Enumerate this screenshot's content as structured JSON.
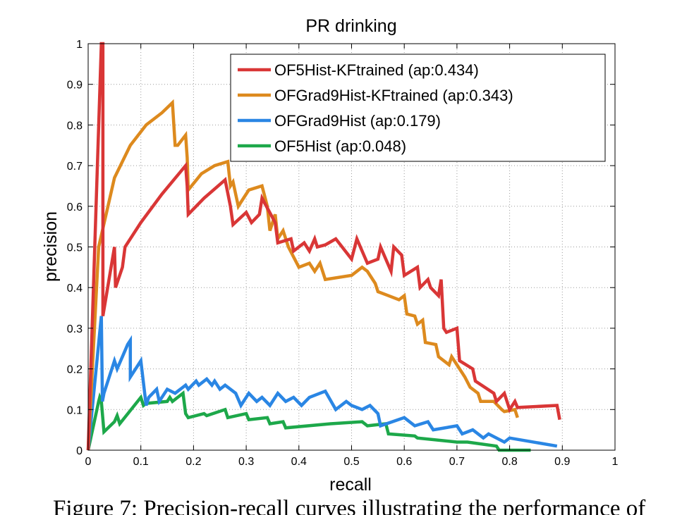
{
  "chart_data": {
    "type": "line",
    "title": "PR drinking",
    "xlabel": "recall",
    "ylabel": "precision",
    "xlim": [
      0,
      1
    ],
    "ylim": [
      0,
      1
    ],
    "grid": true,
    "legend_position": "top-right",
    "xticks": [
      "0",
      "0.1",
      "0.2",
      "0.3",
      "0.4",
      "0.5",
      "0.6",
      "0.7",
      "0.8",
      "0.9",
      "1"
    ],
    "yticks": [
      "0",
      "0.1",
      "0.2",
      "0.3",
      "0.4",
      "0.5",
      "0.6",
      "0.7",
      "0.8",
      "0.9",
      "1"
    ],
    "series": [
      {
        "name": "OF5Hist-KFtrained (ap:0.434)",
        "color": "#d93636",
        "x": [
          0,
          0.025,
          0.028,
          0.028,
          0.05,
          0.052,
          0.065,
          0.07,
          0.1,
          0.14,
          0.185,
          0.188,
          0.19,
          0.22,
          0.26,
          0.27,
          0.275,
          0.3,
          0.31,
          0.325,
          0.33,
          0.355,
          0.36,
          0.385,
          0.39,
          0.41,
          0.42,
          0.43,
          0.435,
          0.45,
          0.47,
          0.5,
          0.51,
          0.53,
          0.55,
          0.555,
          0.575,
          0.58,
          0.595,
          0.6,
          0.625,
          0.63,
          0.645,
          0.65,
          0.665,
          0.67,
          0.675,
          0.68,
          0.7,
          0.705,
          0.73,
          0.735,
          0.77,
          0.775,
          0.79,
          0.8,
          0.81,
          0.815,
          0.89,
          0.895
        ],
        "y": [
          0,
          1.0,
          1.0,
          0.33,
          0.5,
          0.4,
          0.45,
          0.5,
          0.56,
          0.63,
          0.7,
          0.65,
          0.58,
          0.62,
          0.665,
          0.6,
          0.555,
          0.585,
          0.56,
          0.58,
          0.62,
          0.56,
          0.51,
          0.52,
          0.49,
          0.51,
          0.49,
          0.52,
          0.5,
          0.505,
          0.52,
          0.47,
          0.52,
          0.46,
          0.47,
          0.5,
          0.44,
          0.5,
          0.48,
          0.43,
          0.45,
          0.4,
          0.42,
          0.4,
          0.38,
          0.42,
          0.3,
          0.29,
          0.3,
          0.22,
          0.2,
          0.17,
          0.14,
          0.12,
          0.14,
          0.1,
          0.12,
          0.105,
          0.11,
          0.075
        ]
      },
      {
        "name": "OFGrad9Hist-KFtrained (ap:0.343)",
        "color": "#dd8a1e",
        "x": [
          0,
          0.02,
          0.05,
          0.08,
          0.11,
          0.14,
          0.16,
          0.165,
          0.17,
          0.185,
          0.188,
          0.19,
          0.215,
          0.24,
          0.265,
          0.27,
          0.275,
          0.285,
          0.29,
          0.305,
          0.33,
          0.34,
          0.345,
          0.355,
          0.36,
          0.37,
          0.38,
          0.4,
          0.42,
          0.43,
          0.44,
          0.45,
          0.5,
          0.52,
          0.53,
          0.545,
          0.55,
          0.57,
          0.59,
          0.6,
          0.605,
          0.62,
          0.625,
          0.635,
          0.64,
          0.66,
          0.665,
          0.685,
          0.69,
          0.71,
          0.715,
          0.725,
          0.74,
          0.745,
          0.77,
          0.785,
          0.79,
          0.81,
          0.815
        ],
        "y": [
          0,
          0.5,
          0.67,
          0.75,
          0.8,
          0.83,
          0.855,
          0.75,
          0.75,
          0.775,
          0.72,
          0.64,
          0.68,
          0.7,
          0.71,
          0.65,
          0.66,
          0.6,
          0.61,
          0.64,
          0.65,
          0.6,
          0.54,
          0.58,
          0.52,
          0.54,
          0.5,
          0.45,
          0.46,
          0.44,
          0.46,
          0.42,
          0.43,
          0.45,
          0.44,
          0.41,
          0.39,
          0.38,
          0.37,
          0.38,
          0.335,
          0.33,
          0.31,
          0.32,
          0.265,
          0.26,
          0.23,
          0.21,
          0.23,
          0.19,
          0.18,
          0.155,
          0.14,
          0.12,
          0.12,
          0.1,
          0.095,
          0.1,
          0.08
        ]
      },
      {
        "name": "OFGrad9Hist (ap:0.179)",
        "color": "#2a86e4",
        "x": [
          0,
          0.025,
          0.027,
          0.03,
          0.05,
          0.055,
          0.065,
          0.075,
          0.08,
          0.08,
          0.1,
          0.11,
          0.115,
          0.13,
          0.135,
          0.15,
          0.165,
          0.185,
          0.19,
          0.205,
          0.21,
          0.225,
          0.235,
          0.24,
          0.25,
          0.26,
          0.28,
          0.29,
          0.305,
          0.32,
          0.33,
          0.345,
          0.36,
          0.375,
          0.39,
          0.405,
          0.42,
          0.44,
          0.45,
          0.47,
          0.49,
          0.5,
          0.52,
          0.535,
          0.55,
          0.555,
          0.6,
          0.62,
          0.645,
          0.655,
          0.7,
          0.71,
          0.73,
          0.75,
          0.76,
          0.79,
          0.8,
          0.89
        ],
        "y": [
          0,
          0.33,
          0.12,
          0.14,
          0.22,
          0.2,
          0.23,
          0.26,
          0.27,
          0.18,
          0.22,
          0.11,
          0.13,
          0.15,
          0.12,
          0.15,
          0.14,
          0.16,
          0.15,
          0.17,
          0.16,
          0.175,
          0.16,
          0.17,
          0.15,
          0.16,
          0.14,
          0.11,
          0.14,
          0.12,
          0.13,
          0.11,
          0.14,
          0.12,
          0.13,
          0.11,
          0.13,
          0.14,
          0.145,
          0.1,
          0.12,
          0.11,
          0.1,
          0.11,
          0.09,
          0.06,
          0.08,
          0.06,
          0.07,
          0.05,
          0.06,
          0.04,
          0.05,
          0.03,
          0.04,
          0.02,
          0.03,
          0.01
        ]
      },
      {
        "name": "OF5Hist (ap:0.048)",
        "color": "#1da84a",
        "x": [
          0,
          0.02,
          0.022,
          0.025,
          0.03,
          0.05,
          0.055,
          0.06,
          0.1,
          0.105,
          0.11,
          0.15,
          0.155,
          0.16,
          0.18,
          0.185,
          0.19,
          0.22,
          0.225,
          0.26,
          0.265,
          0.3,
          0.305,
          0.34,
          0.345,
          0.37,
          0.375,
          0.46,
          0.52,
          0.53,
          0.565,
          0.57,
          0.62,
          0.625,
          0.7,
          0.72,
          0.775,
          0.78,
          0.84
        ],
        "y": [
          0,
          0.12,
          0.13,
          0.12,
          0.045,
          0.07,
          0.085,
          0.065,
          0.13,
          0.11,
          0.115,
          0.12,
          0.13,
          0.12,
          0.14,
          0.09,
          0.08,
          0.09,
          0.085,
          0.1,
          0.08,
          0.09,
          0.075,
          0.08,
          0.065,
          0.07,
          0.055,
          0.065,
          0.07,
          0.06,
          0.065,
          0.04,
          0.035,
          0.03,
          0.02,
          0.02,
          0.01,
          0.0,
          0.0
        ]
      }
    ]
  },
  "caption": "Figure 7: Precision-recall curves illustrating the performance of"
}
